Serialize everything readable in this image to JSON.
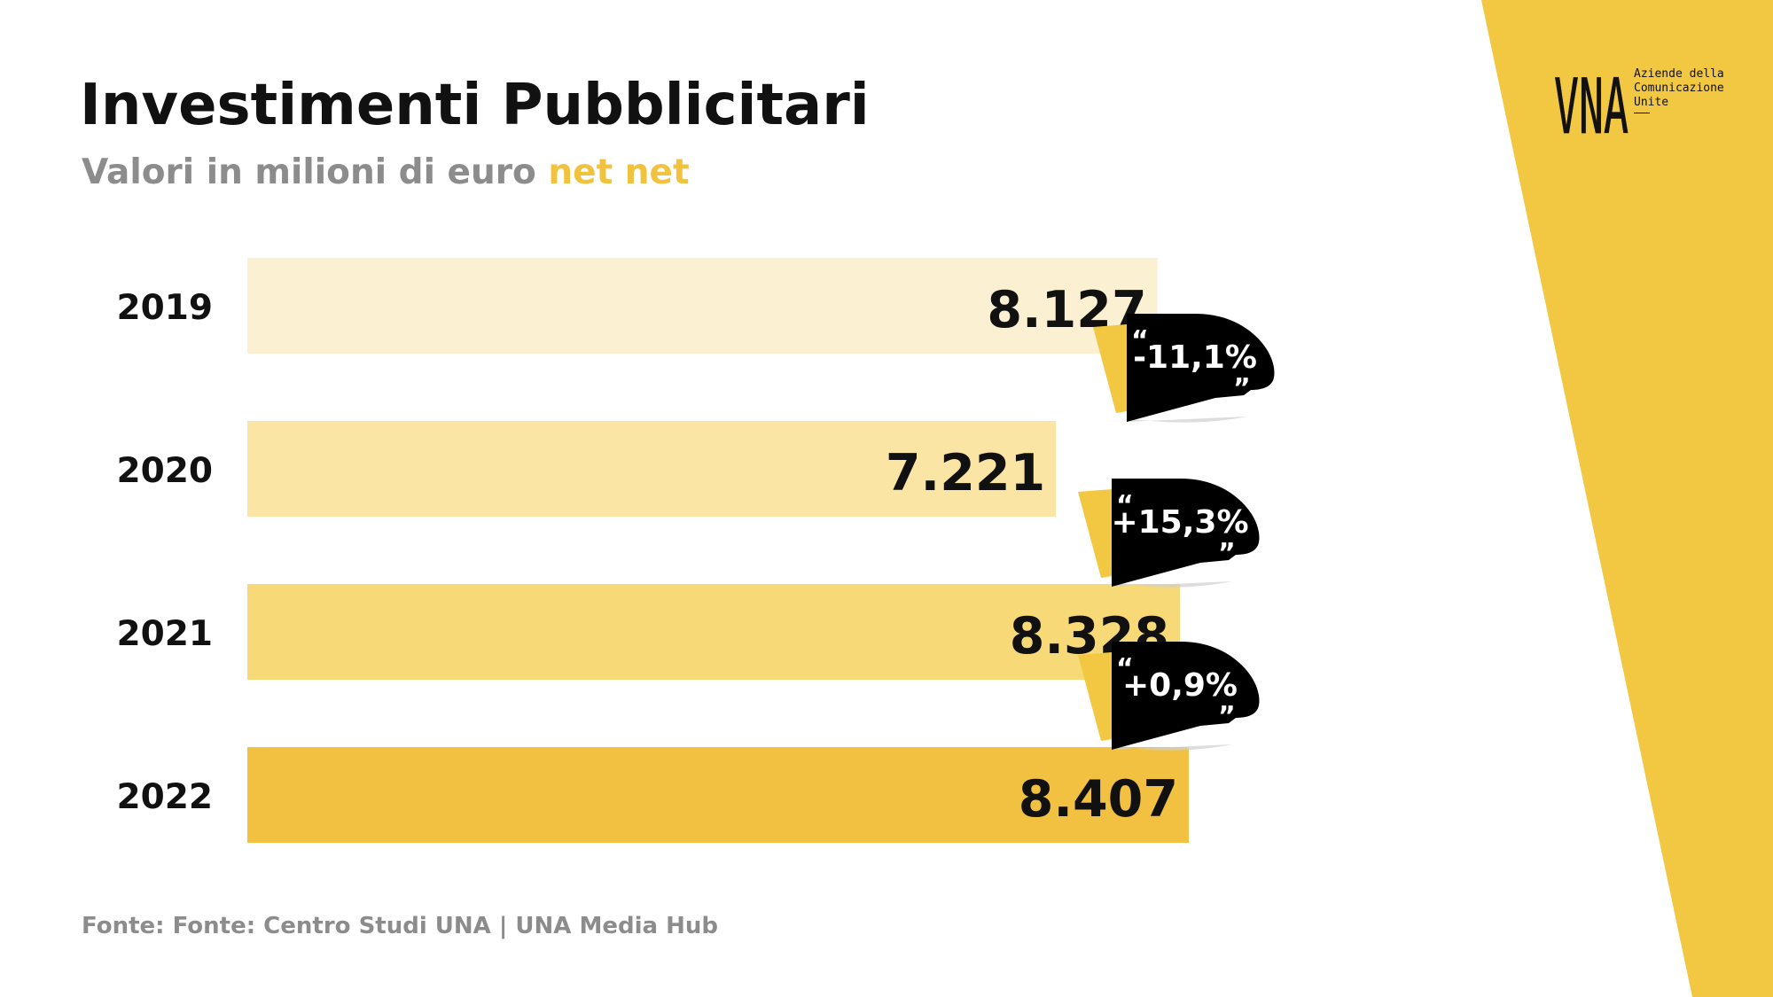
{
  "page": {
    "title": "Investimenti Pubblicitari",
    "subtitle_main": "Valori in milioni di euro ",
    "subtitle_highlight": "net net",
    "footer": "Fonte: Fonte: Centro Studi UNA | UNA Media Hub"
  },
  "brand": {
    "logo_mark": "VNA",
    "logo_lines": "Aziende della\nComunicazione\nUnite",
    "accent_color": "#f2c742",
    "highlight_color": "#f1c23d",
    "callout_color": "#000000",
    "text_color": "#111111",
    "muted_color": "#8c8c8c"
  },
  "chart_data": {
    "type": "bar",
    "orientation": "horizontal",
    "title": "Investimenti Pubblicitari",
    "subtitle": "Valori in milioni di euro net net",
    "unit": "milioni di euro",
    "xlim": [
      0,
      8407
    ],
    "grid": false,
    "legend": "none",
    "categories": [
      "2019",
      "2020",
      "2021",
      "2022"
    ],
    "values": [
      8127,
      7221,
      8328,
      8407
    ],
    "value_labels": [
      "8.127",
      "7.221",
      "8.328",
      "8.407"
    ],
    "bar_colors": [
      "#fbf0d1",
      "#fae5a4",
      "#f8d977",
      "#f2c142"
    ],
    "annotations": [
      {
        "category": "2020",
        "text": "-11,1%"
      },
      {
        "category": "2021",
        "text": "+15,3%"
      },
      {
        "category": "2022",
        "text": "+0,9%"
      }
    ]
  }
}
